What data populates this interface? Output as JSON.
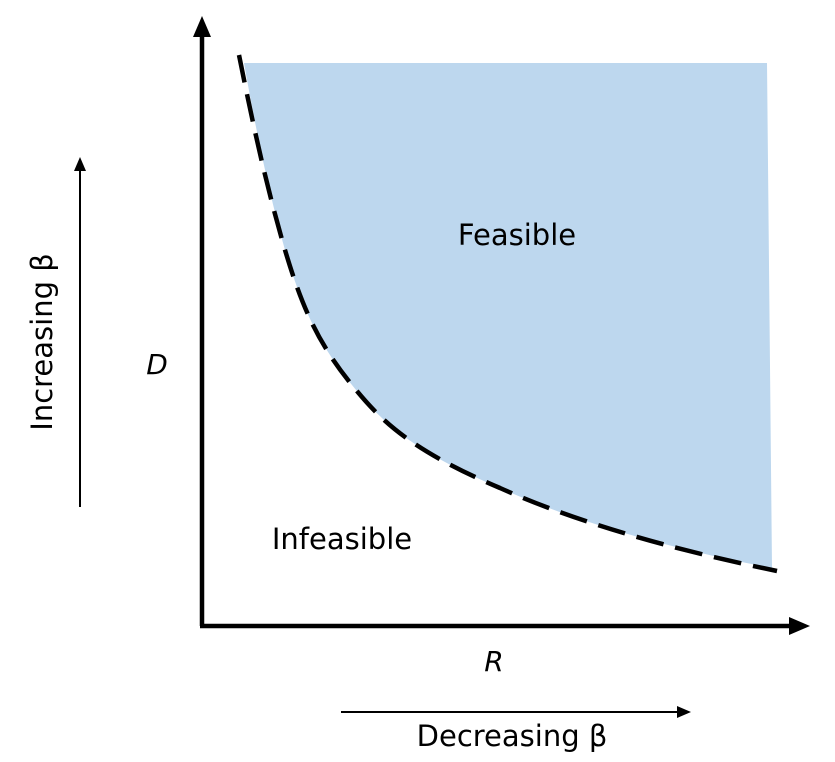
{
  "diagram": {
    "x_axis_label": "R",
    "y_axis_label": "D",
    "feasible_label": "Feasible",
    "infeasible_label": "Infeasible",
    "horizontal_arrow_label": "Decreasing β",
    "vertical_arrow_label": "Increasing β"
  },
  "colors": {
    "feasible_fill": "#bdd7ee",
    "axis": "#000000",
    "curve": "#000000"
  }
}
